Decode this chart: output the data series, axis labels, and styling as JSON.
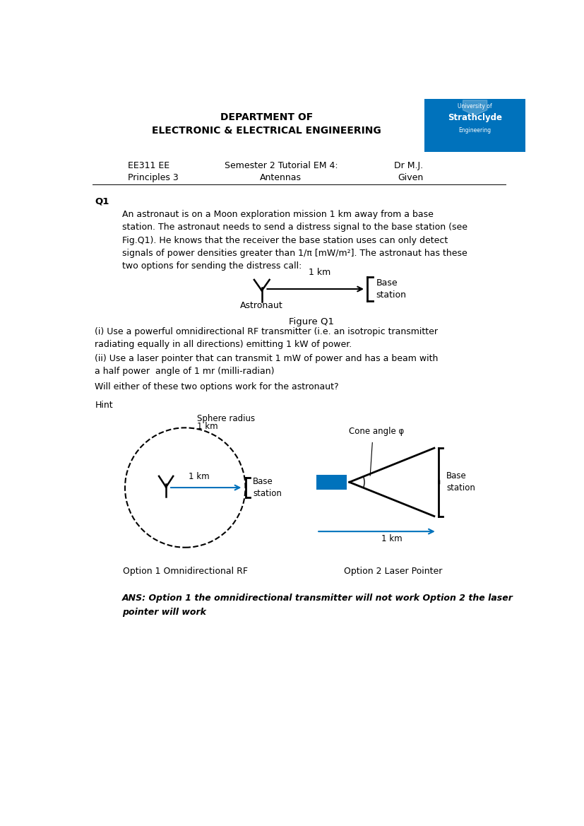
{
  "title1": "DEPARTMENT OF",
  "title2": "ELECTRONIC & ELECTRICAL ENGINEERING",
  "header_left1": "EE311 EE",
  "header_left2": "Principles 3",
  "header_center1": "Semester 2 Tutorial EM 4:",
  "header_center2": "Antennas",
  "header_right1": "Dr M.J.",
  "header_right2": "Given",
  "q1_label": "Q1",
  "body_line1": "An astronaut is on a Moon exploration mission 1 km away from a base",
  "body_line2": "station. The astronaut needs to send a distress signal to the base station (see",
  "body_line3": "Fig.Q1). He knows that the receiver the base station uses can only detect",
  "body_line4": "signals of power densities greater than 1/π [mW/m²]. The astronaut has these",
  "body_line5": "two options for sending the distress call:",
  "fig_label": "Figure Q1",
  "fig_antenna_label": "Astronaut",
  "fig_base_label": "Base\nstation",
  "fig_distance_label": "1 km",
  "option_i_line1": "(i) Use a powerful omnidirectional RF transmitter (i.e. an isotropic transmitter",
  "option_i_line2": "radiating equally in all directions) emitting 1 kW of power.",
  "option_ii_line1": "(ii) Use a laser pointer that can transmit 1 mW of power and has a beam with",
  "option_ii_line2": "a half power  angle of 1 mr (milli-radian)",
  "will_either": "Will either of these two options work for the astronaut?",
  "hint": "Hint",
  "sphere_label_line1": "Sphere radius",
  "sphere_label_line2": "1 km",
  "option1_km_label": "1 km",
  "base1_label": "Base\nstation",
  "cone_angle_label": "Cone angle φ",
  "option2_base_label": "Base\nstation",
  "option2_dist_label": "1 km",
  "option1_caption": "Option 1 Omnidirectional RF",
  "option2_caption": "Option 2 Laser Pointer",
  "ans_line1": "ANS: Option 1 the omnidirectional transmitter will not work Option 2 the laser",
  "ans_line2": "pointer will work",
  "strathclyde_color": "#0072BC",
  "background_color": "#FFFFFF",
  "text_color": "#000000"
}
